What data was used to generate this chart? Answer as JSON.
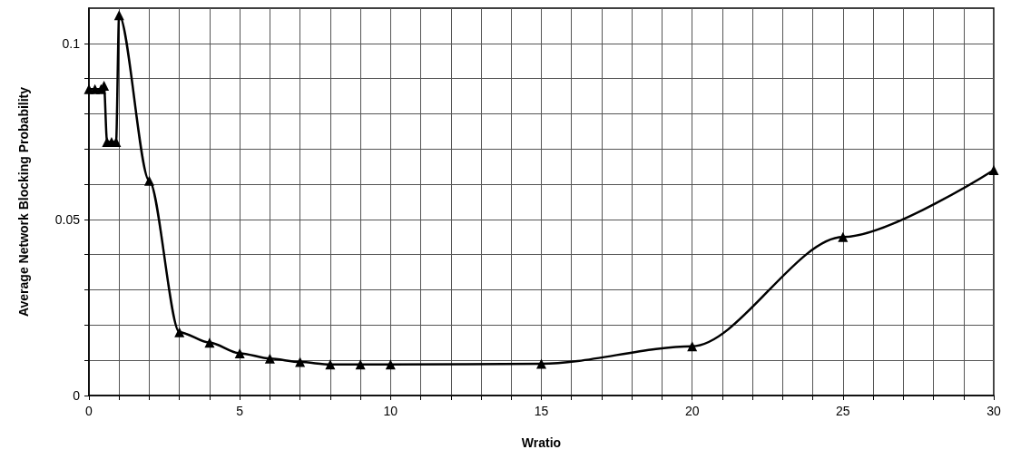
{
  "chart_data": {
    "type": "line",
    "xlabel": "Wratio",
    "ylabel": "Average Network Blocking Probability",
    "x": [
      0,
      0.2,
      0.4,
      0.5,
      0.6,
      0.75,
      0.9,
      1,
      2,
      3,
      4,
      5,
      6,
      7,
      8,
      9,
      10,
      15,
      20,
      25,
      30
    ],
    "series": [
      {
        "color": "#000000",
        "values": [
          0.087,
          0.087,
          0.087,
          0.088,
          0.072,
          0.072,
          0.072,
          0.108,
          0.061,
          0.018,
          0.015,
          0.012,
          0.0105,
          0.0095,
          0.0088,
          0.0088,
          0.0088,
          0.009,
          0.014,
          0.045,
          0.064
        ]
      }
    ],
    "xlim": [
      0,
      30
    ],
    "xticks": [
      0,
      {
        "value": 1,
        "label": null
      },
      {
        "value": 2,
        "label": null
      },
      {
        "value": 3,
        "label": null
      },
      {
        "value": 4,
        "label": null
      },
      5,
      {
        "value": 6,
        "label": null
      },
      {
        "value": 7,
        "label": null
      },
      {
        "value": 8,
        "label": null
      },
      {
        "value": 9,
        "label": null
      },
      10,
      {
        "value": 11,
        "label": null
      },
      {
        "value": 12,
        "label": null
      },
      {
        "value": 13,
        "label": null
      },
      {
        "value": 14,
        "label": null
      },
      15,
      {
        "value": 16,
        "label": null
      },
      {
        "value": 17,
        "label": null
      },
      {
        "value": 18,
        "label": null
      },
      {
        "value": 19,
        "label": null
      },
      20,
      {
        "value": 21,
        "label": null
      },
      {
        "value": 22,
        "label": null
      },
      {
        "value": 23,
        "label": null
      },
      {
        "value": 24,
        "label": null
      },
      25,
      {
        "value": 26,
        "label": null
      },
      {
        "value": 27,
        "label": null
      },
      {
        "value": 28,
        "label": null
      },
      {
        "value": 29,
        "label": null
      },
      30
    ],
    "ylim": [
      0,
      0.11
    ],
    "yticks": [
      0,
      {
        "value": 0.01,
        "label": null
      },
      {
        "value": 0.02,
        "label": null
      },
      {
        "value": 0.03,
        "label": null
      },
      {
        "value": 0.04,
        "label": null
      },
      0.05,
      {
        "value": 0.06,
        "label": null
      },
      {
        "value": 0.07,
        "label": null
      },
      {
        "value": 0.08,
        "label": null
      },
      {
        "value": 0.09,
        "label": null
      },
      0.1
    ],
    "grid": true,
    "marker": "triangle",
    "line_style": "solid"
  }
}
